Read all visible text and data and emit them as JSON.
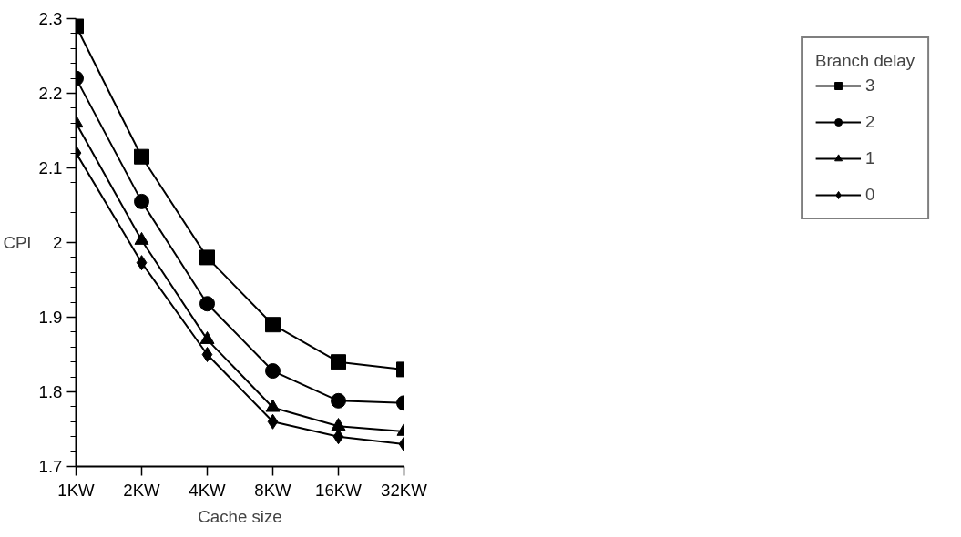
{
  "chart_data": {
    "type": "line",
    "xlabel": "Cache size",
    "ylabel": "CPI",
    "legend_title": "Branch delay",
    "categories": [
      "1KW",
      "2KW",
      "4KW",
      "8KW",
      "16KW",
      "32KW"
    ],
    "series": [
      {
        "name": "3",
        "color": "#000000",
        "marker": "square",
        "values": [
          2.29,
          2.115,
          1.98,
          1.89,
          1.84,
          1.83
        ]
      },
      {
        "name": "2",
        "color": "#000000",
        "marker": "circle",
        "values": [
          2.22,
          2.055,
          1.918,
          1.828,
          1.788,
          1.785
        ]
      },
      {
        "name": "1",
        "color": "#000000",
        "marker": "triangle",
        "values": [
          2.16,
          2.003,
          1.87,
          1.779,
          1.754,
          1.747
        ]
      },
      {
        "name": "0",
        "color": "#000000",
        "marker": "diamond",
        "values": [
          2.12,
          1.973,
          1.85,
          1.76,
          1.74,
          1.73
        ]
      }
    ],
    "ylim": [
      1.7,
      2.3
    ],
    "yticks": [
      {
        "value": 1.7,
        "label": "1.7"
      },
      {
        "value": 1.72,
        "label": null
      },
      {
        "value": 1.74,
        "label": null
      },
      {
        "value": 1.76,
        "label": null
      },
      {
        "value": 1.78,
        "label": null
      },
      {
        "value": 1.8,
        "label": "1.8"
      },
      {
        "value": 1.82,
        "label": null
      },
      {
        "value": 1.84,
        "label": null
      },
      {
        "value": 1.86,
        "label": null
      },
      {
        "value": 1.88,
        "label": null
      },
      {
        "value": 1.9,
        "label": "1.9"
      },
      {
        "value": 1.92,
        "label": null
      },
      {
        "value": 1.94,
        "label": null
      },
      {
        "value": 1.96,
        "label": null
      },
      {
        "value": 1.98,
        "label": null
      },
      {
        "value": 2.0,
        "label": "2"
      },
      {
        "value": 2.02,
        "label": null
      },
      {
        "value": 2.04,
        "label": null
      },
      {
        "value": 2.06,
        "label": null
      },
      {
        "value": 2.08,
        "label": null
      },
      {
        "value": 2.1,
        "label": "2.1"
      },
      {
        "value": 2.12,
        "label": null
      },
      {
        "value": 2.14,
        "label": null
      },
      {
        "value": 2.16,
        "label": null
      },
      {
        "value": 2.18,
        "label": null
      },
      {
        "value": 2.2,
        "label": "2.2"
      },
      {
        "value": 2.22,
        "label": null
      },
      {
        "value": 2.24,
        "label": null
      },
      {
        "value": 2.26,
        "label": null
      },
      {
        "value": 2.28,
        "label": null
      },
      {
        "value": 2.3,
        "label": "2.3"
      }
    ],
    "grid": false,
    "legend": "right",
    "line_style": "solid"
  }
}
